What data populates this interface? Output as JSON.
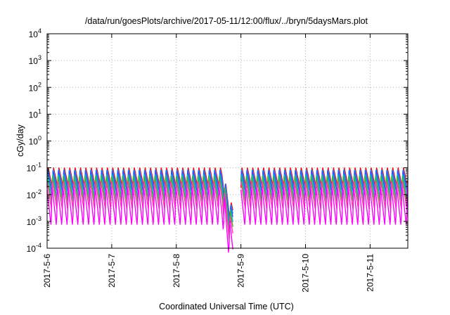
{
  "chart_data": {
    "type": "line",
    "title": "/data/run/goesPlots/archive/2017-05-11/12:00/flux/../bryn/5daysMars.plot",
    "xlabel": "Coordinated Universal Time (UTC)",
    "ylabel": "cGy/day",
    "y_scale": "log",
    "ylim": [
      0.0001,
      10000
    ],
    "y_ticks": [
      {
        "value": 0.0001,
        "base": "10",
        "exp": "-4"
      },
      {
        "value": 0.001,
        "base": "10",
        "exp": "-3"
      },
      {
        "value": 0.01,
        "base": "10",
        "exp": "-2"
      },
      {
        "value": 0.1,
        "base": "10",
        "exp": "-1"
      },
      {
        "value": 1,
        "base": "10",
        "exp": "0"
      },
      {
        "value": 10,
        "base": "10",
        "exp": "1"
      },
      {
        "value": 100,
        "base": "10",
        "exp": "2"
      },
      {
        "value": 1000,
        "base": "10",
        "exp": "3"
      },
      {
        "value": 10000,
        "base": "10",
        "exp": "4"
      }
    ],
    "xlim": [
      "2017-05-06T00:00",
      "2017-05-11T14:00"
    ],
    "x_ticks": [
      "2017-5-6",
      "2017-5-7",
      "2017-5-8",
      "2017-5-9",
      "2017-5-10",
      "2017-5-11"
    ],
    "x_tick_dates": [
      "2017-05-06",
      "2017-05-07",
      "2017-05-08",
      "2017-05-09",
      "2017-05-10",
      "2017-05-11"
    ],
    "grid": true,
    "sawtooth_period_hours": 2,
    "data_gap": [
      "2017-05-08T21:00",
      "2017-05-09T00:00"
    ],
    "dip": {
      "start": "2017-05-08T17:00",
      "minimum": "2017-05-08T20:00"
    },
    "series": [
      {
        "color": "#ff0000",
        "peak": 0.11,
        "trough": 0.018
      },
      {
        "color": "#1e90ff",
        "peak": 0.095,
        "trough": 0.014
      },
      {
        "color": "#3050ff",
        "peak": 0.08,
        "trough": 0.011
      },
      {
        "color": "#00c0c0",
        "peak": 0.065,
        "trough": 0.007
      },
      {
        "color": "#40b040",
        "peak": 0.05,
        "trough": 0.005
      },
      {
        "color": "#ff40a0",
        "peak": 0.035,
        "trough": 0.003
      },
      {
        "color": "#ff00ff",
        "peak": 0.022,
        "trough": 0.0006
      }
    ]
  }
}
